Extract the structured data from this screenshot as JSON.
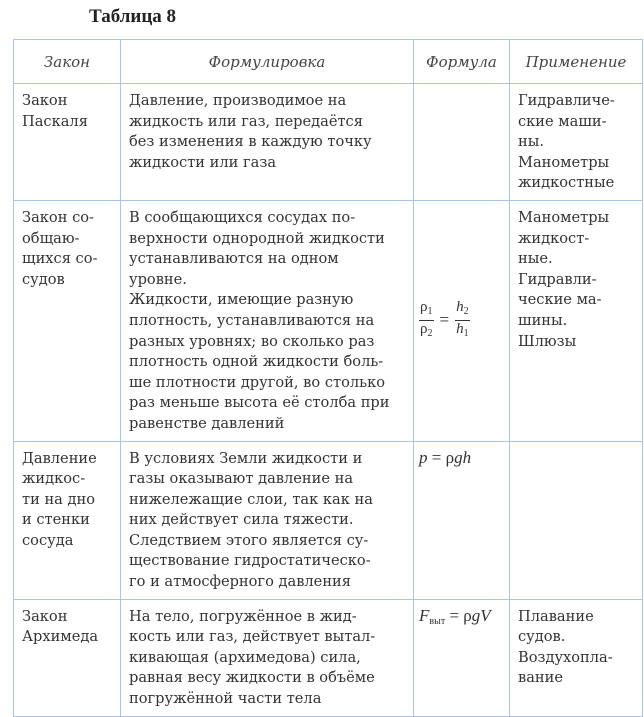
{
  "title": "Таблица 8",
  "headers": [
    "Закон",
    "Формулировка",
    "Формула",
    "Применение"
  ],
  "rows": [
    {
      "law": [
        "Закон",
        "Паскаля"
      ],
      "statement": [
        "Давление, производимое на",
        "жидкость или газ, передаётся",
        "без изменения в каждую точку",
        "жидкости или газа"
      ],
      "formula": null,
      "application": [
        "Гидравличе-",
        "ские маши-",
        "ны.",
        "Манометры",
        "жидкостные"
      ]
    },
    {
      "law": [
        "Закон со-",
        "общаю-",
        "щихся со-",
        "судов"
      ],
      "statement": [
        "В сообщающихся сосудах по-",
        "верхности однородной жидкости",
        "устанавливаются на одном",
        "уровне.",
        "Жидкости, имеющие разную",
        "плотность, устанавливаются на",
        "разных уровнях; во сколько раз",
        "плотность одной жидкости боль-",
        "ше плотности другой, во столько",
        "раз меньше высота её столба при",
        "равенстве давлений"
      ],
      "formula": {
        "lhs_num": "ρ",
        "lhs_num_sub": "1",
        "lhs_den": "ρ",
        "lhs_den_sub": "2",
        "eq": "=",
        "rhs_num": "h",
        "rhs_num_sub": "2",
        "rhs_den": "h",
        "rhs_den_sub": "1"
      },
      "application": [
        "Манометры",
        "жидкост-",
        "ные.",
        "Гидравли-",
        "ческие ма-",
        "шины.",
        "Шлюзы"
      ]
    },
    {
      "law": [
        "Давление",
        "жидкос-",
        "ти на дно",
        "и стенки",
        "сосуда"
      ],
      "statement": [
        "В условиях Земли жидкости и",
        "газы оказывают давление на",
        "нижележащие слои, так как на",
        "них действует сила тяжести.",
        "Следствием этого является су-",
        "ществование гидростатическо-",
        "го и атмосферного давления"
      ],
      "formula": {
        "lhs": "p",
        "eq": " = ",
        "rhs_rho": "ρ",
        "rhs_rest": "gh"
      },
      "application": []
    },
    {
      "law": [
        "Закон",
        "Архимеда"
      ],
      "statement": [
        "На тело, погружённое в жид-",
        "кость или газ, действует вытал-",
        "кивающая (архимедова) сила,",
        "равная весу жидкости в объёме",
        "погружённой части тела"
      ],
      "formula": {
        "lhs": "F",
        "lhs_sub": "выт",
        "eq": " = ",
        "rhs_rho": "ρ",
        "rhs_rest": "gV"
      },
      "application": [
        "Плавание",
        "судов.",
        "Воздухопла-",
        "вание"
      ]
    }
  ],
  "colors": {
    "border": "#a9c4e6",
    "text": "#333333"
  }
}
